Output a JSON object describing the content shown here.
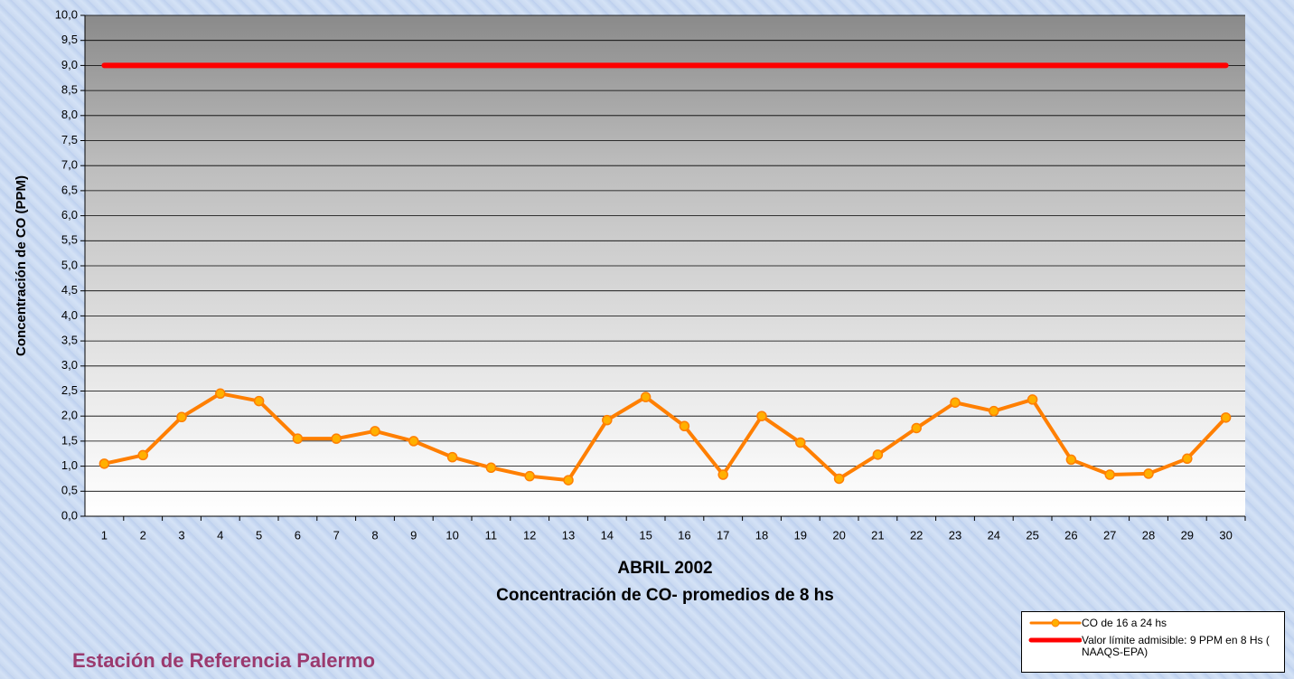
{
  "chart_data": {
    "type": "line",
    "title": "Concentración de CO- promedios de 8 hs",
    "x_label": "ABRIL 2002",
    "y_label": "Concentración de CO (PPM)",
    "annotation": "Estación de Referencia Palermo",
    "categories": [
      "1",
      "2",
      "3",
      "4",
      "5",
      "6",
      "7",
      "8",
      "9",
      "10",
      "11",
      "12",
      "13",
      "14",
      "15",
      "16",
      "17",
      "18",
      "19",
      "20",
      "21",
      "22",
      "23",
      "24",
      "25",
      "26",
      "27",
      "28",
      "29",
      "30"
    ],
    "series": [
      {
        "name": "CO de 16 a 24 hs",
        "color": "#ff7f00",
        "markers": true,
        "values": [
          1.05,
          1.22,
          1.98,
          2.45,
          2.3,
          1.55,
          1.55,
          1.7,
          1.5,
          1.18,
          0.97,
          0.8,
          0.72,
          1.92,
          2.38,
          1.8,
          0.83,
          2.0,
          1.47,
          0.75,
          1.23,
          1.76,
          2.27,
          2.1,
          2.33,
          1.13,
          0.83,
          0.85,
          1.15,
          1.97
        ]
      },
      {
        "name": "Valor límite admisible: 9 PPM en 8 Hs ( NAAQS-EPA)",
        "color": "#ff0000",
        "markers": false,
        "values": [
          9,
          9,
          9,
          9,
          9,
          9,
          9,
          9,
          9,
          9,
          9,
          9,
          9,
          9,
          9,
          9,
          9,
          9,
          9,
          9,
          9,
          9,
          9,
          9,
          9,
          9,
          9,
          9,
          9,
          9
        ]
      }
    ],
    "ylim": [
      0,
      10
    ],
    "yticks": [
      {
        "value": 0,
        "label": "0,0"
      },
      {
        "value": 0.5,
        "label": "0,5"
      },
      {
        "value": 1,
        "label": "1,0"
      },
      {
        "value": 1.5,
        "label": "1,5"
      },
      {
        "value": 2,
        "label": "2,0"
      },
      {
        "value": 2.5,
        "label": "2,5"
      },
      {
        "value": 3,
        "label": "3,0"
      },
      {
        "value": 3.5,
        "label": "3,5"
      },
      {
        "value": 4,
        "label": "4,0"
      },
      {
        "value": 4.5,
        "label": "4,5"
      },
      {
        "value": 5,
        "label": "5,0"
      },
      {
        "value": 5.5,
        "label": "5,5"
      },
      {
        "value": 6,
        "label": "6,0"
      },
      {
        "value": 6.5,
        "label": "6,5"
      },
      {
        "value": 7,
        "label": "7,0"
      },
      {
        "value": 7.5,
        "label": "7,5"
      },
      {
        "value": 8,
        "label": "8,0"
      },
      {
        "value": 8.5,
        "label": "8,5"
      },
      {
        "value": 9,
        "label": "9,0"
      },
      {
        "value": 9.5,
        "label": "9,5"
      },
      {
        "value": 10,
        "label": "10,0"
      }
    ],
    "grid": true
  }
}
